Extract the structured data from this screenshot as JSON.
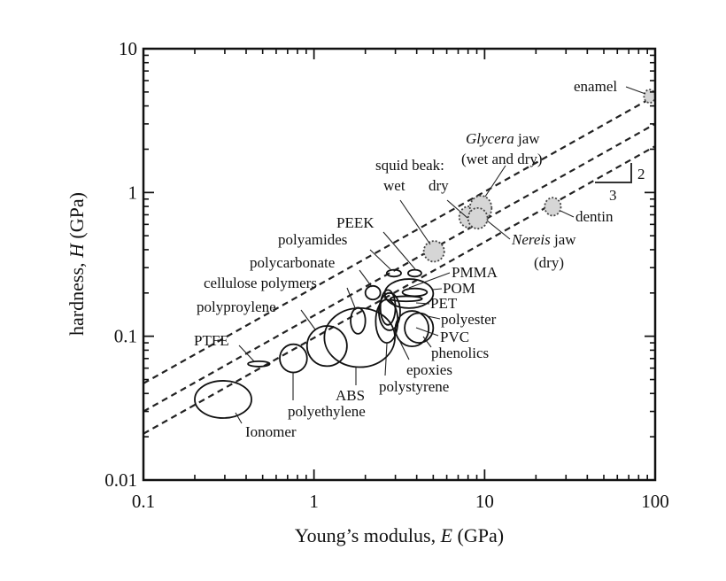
{
  "chart_data": {
    "type": "scatter",
    "title": "",
    "xlabel": {
      "prefix": "Young’s modulus, ",
      "var": "E",
      "suffix": " (GPa)"
    },
    "ylabel": {
      "prefix": "hardness, ",
      "var": "H",
      "suffix": " (GPa)"
    },
    "xscale": "log",
    "yscale": "log",
    "xlim": [
      0.1,
      100
    ],
    "ylim": [
      0.01,
      10
    ],
    "xticks": [
      {
        "v": 0.1,
        "label": "0.1"
      },
      {
        "v": 1,
        "label": "1"
      },
      {
        "v": 10,
        "label": "10"
      },
      {
        "v": 100,
        "label": "100"
      }
    ],
    "yticks": [
      {
        "v": 0.01,
        "label": "0.01"
      },
      {
        "v": 0.1,
        "label": "0.1"
      },
      {
        "v": 1,
        "label": "1"
      },
      {
        "v": 10,
        "label": "10"
      }
    ],
    "reference_lines": [
      {
        "name": "upper",
        "E": [
          0.1,
          100
        ],
        "H": [
          0.047,
          4.7
        ]
      },
      {
        "name": "middle",
        "E": [
          0.1,
          100
        ],
        "H": [
          0.03,
          3.0
        ]
      },
      {
        "name": "lower",
        "E": [
          0.1,
          100
        ],
        "H": [
          0.021,
          2.1
        ]
      }
    ],
    "slope_triangle": {
      "rise": "2",
      "run": "3"
    },
    "polymers": [
      {
        "name": "Ionomer",
        "E_range": [
          0.2,
          0.43
        ],
        "H_range": [
          0.027,
          0.049
        ]
      },
      {
        "name": "PTFE",
        "E_range": [
          0.41,
          0.55
        ],
        "H_range": [
          0.0615,
          0.067
        ]
      },
      {
        "name": "polyethylene",
        "E_range": [
          0.63,
          0.91
        ],
        "H_range": [
          0.056,
          0.088
        ]
      },
      {
        "name": "polyproylene",
        "E_range": [
          0.91,
          1.56
        ],
        "H_range": [
          0.062,
          0.118
        ]
      },
      {
        "name": "ABS",
        "E_range": [
          1.15,
          2.98
        ],
        "H_range": [
          0.061,
          0.157
        ]
      },
      {
        "name": "cellulose polymers",
        "E_range": [
          1.64,
          2.0
        ],
        "H_range": [
          0.104,
          0.158
        ]
      },
      {
        "name": "polycarbonate",
        "E_range": [
          2.0,
          2.45
        ],
        "H_range": [
          0.18,
          0.224
        ]
      },
      {
        "name": "polyamides",
        "E_range": [
          2.67,
          3.24
        ],
        "H_range": [
          0.26,
          0.29
        ]
      },
      {
        "name": "PEEK",
        "E_range": [
          3.56,
          4.26
        ],
        "H_range": [
          0.26,
          0.29
        ]
      },
      {
        "name": "PMMA",
        "E_range": [
          2.6,
          5.0
        ],
        "H_range": [
          0.157,
          0.25
        ]
      },
      {
        "name": "POM",
        "E_range": [
          3.3,
          4.6
        ],
        "H_range": [
          0.19,
          0.215
        ]
      },
      {
        "name": "PET",
        "E_range": [
          2.8,
          4.3
        ],
        "H_range": [
          0.175,
          0.19
        ]
      },
      {
        "name": "polyester",
        "E_range": [
          2.4,
          3.2
        ],
        "H_range": [
          0.11,
          0.2
        ]
      },
      {
        "name": "polystyrene",
        "E_range": [
          2.3,
          3.1
        ],
        "H_range": [
          0.09,
          0.18
        ]
      },
      {
        "name": "epoxies",
        "E_range": [
          2.45,
          3.0
        ],
        "H_range": [
          0.12,
          0.21
        ]
      },
      {
        "name": "phenolics",
        "E_range": [
          3.0,
          4.7
        ],
        "H_range": [
          0.085,
          0.15
        ]
      },
      {
        "name": "PVC",
        "E_range": [
          3.4,
          5.0
        ],
        "H_range": [
          0.09,
          0.145
        ]
      }
    ],
    "biological": [
      {
        "name": "squid beak wet",
        "E": 5.0,
        "H": 0.39,
        "E_range": [
          4.4,
          5.8
        ],
        "H_range": [
          0.33,
          0.46
        ]
      },
      {
        "name": "squid beak dry",
        "E": 8.1,
        "H": 0.68,
        "E_range": [
          7.1,
          9.2
        ],
        "H_range": [
          0.57,
          0.8
        ]
      },
      {
        "name": "Glycera jaw",
        "E": 9.5,
        "H": 0.78,
        "E_range": [
          8.2,
          11.0
        ],
        "H_range": [
          0.64,
          0.95
        ]
      },
      {
        "name": "Nereis jaw",
        "E": 9.1,
        "H": 0.66,
        "E_range": [
          8.0,
          10.4
        ],
        "H_range": [
          0.56,
          0.78
        ]
      },
      {
        "name": "dentin",
        "E": 25,
        "H": 0.8,
        "E_range": [
          22.5,
          28
        ],
        "H_range": [
          0.69,
          0.92
        ]
      },
      {
        "name": "enamel",
        "E": 93,
        "H": 4.7,
        "E_range": [
          86,
          100
        ],
        "H_range": [
          4.2,
          5.2
        ]
      }
    ],
    "labels": {
      "enamel": "enamel",
      "glycera_italic": "Glycera",
      "glycera_rest": " jaw",
      "glycera_line2": "(wet and dry)",
      "squid_beak": "squid beak:",
      "squid_wet": "wet",
      "squid_dry": "dry",
      "dentin": "dentin",
      "nereis_italic": "Nereis",
      "nereis_rest": " jaw",
      "nereis_line2": "(dry)",
      "peek": "PEEK",
      "polyamides": "polyamides",
      "polycarbonate": "polycarbonate",
      "cellulose": "cellulose polymers",
      "polypropylene": "polyproylene",
      "ptfe": "PTFE",
      "ionomer": "Ionomer",
      "polyethylene": "polyethylene",
      "abs": "ABS",
      "polystyrene": "polystyrene",
      "epoxies": "epoxies",
      "phenolics": "phenolics",
      "pvc": "PVC",
      "polyester": "polyester",
      "pet": "PET",
      "pom": "POM",
      "pmma": "PMMA"
    },
    "grid": false,
    "legend": "none"
  }
}
